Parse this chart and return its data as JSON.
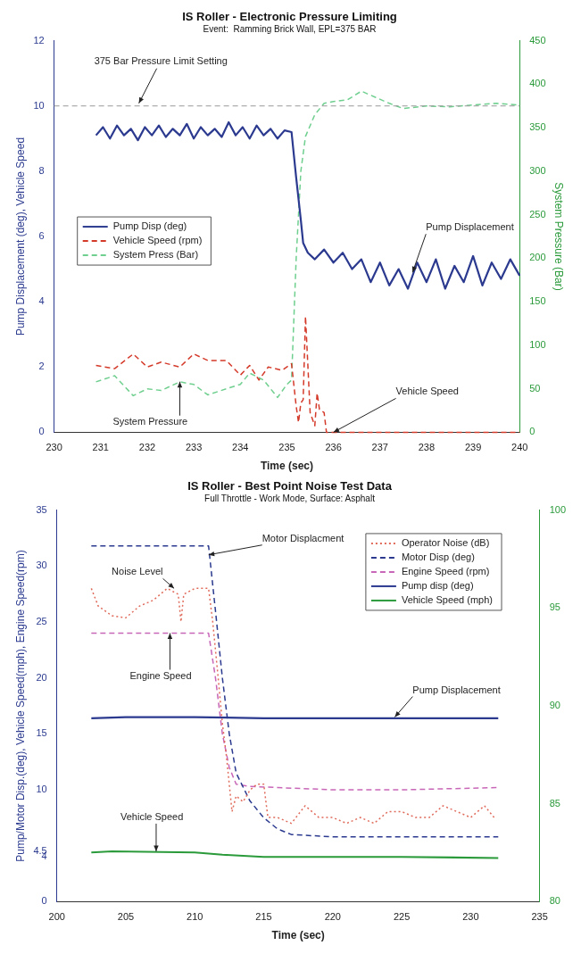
{
  "chart_data": [
    {
      "type": "line",
      "title": "IS Roller - Electronic Pressure Limiting",
      "subtitle": "Event:  Ramming Brick Wall, EPL=375 BAR",
      "xlabel": "Time (sec)",
      "ylabel": "Pump Displacement (deg), Vehicle Speed",
      "y2label": "System Pressure (Bar)",
      "xlim": [
        230,
        240
      ],
      "xticks": [
        230,
        231,
        232,
        233,
        234,
        235,
        236,
        237,
        238,
        239,
        240
      ],
      "ylim": [
        0,
        12
      ],
      "yticks": [
        0,
        2,
        4,
        6,
        8,
        10,
        12
      ],
      "y2lim": [
        0,
        450
      ],
      "y2ticks": [
        0,
        50,
        100,
        150,
        200,
        250,
        300,
        350,
        400,
        450
      ],
      "legend": "center left",
      "grid": false,
      "series": [
        {
          "name": "Pump Disp (deg)",
          "color": "#2b3a8f",
          "line_style": "solid",
          "x": [
            230.9,
            231.05,
            231.2,
            231.35,
            231.5,
            231.65,
            231.8,
            231.95,
            232.1,
            232.25,
            232.4,
            232.55,
            232.7,
            232.85,
            233.0,
            233.15,
            233.3,
            233.45,
            233.6,
            233.75,
            233.9,
            234.05,
            234.2,
            234.35,
            234.5,
            234.65,
            234.8,
            234.95,
            235.1,
            235.2,
            235.3,
            235.35,
            235.45,
            235.6,
            235.8,
            236.0,
            236.2,
            236.4,
            236.6,
            236.8,
            237.0,
            237.2,
            237.4,
            237.6,
            237.8,
            238.0,
            238.2,
            238.4,
            238.6,
            238.8,
            239.0,
            239.2,
            239.4,
            239.6,
            239.8,
            240.0
          ],
          "values": [
            9.1,
            9.35,
            9.0,
            9.4,
            9.1,
            9.3,
            8.95,
            9.35,
            9.1,
            9.4,
            9.05,
            9.3,
            9.1,
            9.45,
            9.0,
            9.35,
            9.1,
            9.3,
            9.05,
            9.5,
            9.1,
            9.35,
            9.0,
            9.4,
            9.1,
            9.3,
            9.0,
            9.25,
            9.2,
            7.8,
            6.5,
            5.8,
            5.5,
            5.3,
            5.6,
            5.2,
            5.5,
            5.0,
            5.3,
            4.6,
            5.2,
            4.5,
            5.0,
            4.4,
            5.2,
            4.6,
            5.3,
            4.4,
            5.1,
            4.6,
            5.4,
            4.5,
            5.2,
            4.7,
            5.3,
            4.8
          ]
        },
        {
          "name": "Vehicle Speed (rpm)",
          "color": "#d43a2a",
          "line_style": "dashed",
          "x": [
            230.9,
            231.3,
            231.7,
            232.0,
            232.3,
            232.7,
            233.0,
            233.3,
            233.7,
            234.0,
            234.2,
            234.4,
            234.6,
            234.9,
            235.1,
            235.2,
            235.25,
            235.3,
            235.35,
            235.4,
            235.5,
            235.6,
            235.65,
            235.7,
            235.8,
            235.85,
            240.0
          ],
          "values": [
            2.05,
            1.95,
            2.4,
            2.0,
            2.15,
            2.0,
            2.4,
            2.2,
            2.2,
            1.75,
            2.05,
            1.6,
            2.0,
            1.9,
            2.1,
            0.8,
            0.3,
            0.9,
            1.0,
            3.55,
            0.6,
            0.2,
            1.2,
            0.7,
            0.6,
            0,
            0
          ]
        },
        {
          "name": "System Press (Bar)",
          "color": "#6fcf8f",
          "line_style": "dashed",
          "axis": "y2",
          "x": [
            230.9,
            231.3,
            231.7,
            232.0,
            232.3,
            232.7,
            233.0,
            233.3,
            233.7,
            234.0,
            234.2,
            234.5,
            234.8,
            235.0,
            235.1,
            235.2,
            235.3,
            235.4,
            235.6,
            235.8,
            236.0,
            236.3,
            236.6,
            236.9,
            237.2,
            237.5,
            238.0,
            238.5,
            239.0,
            239.5,
            240.0
          ],
          "values": [
            58,
            65,
            42,
            50,
            48,
            58,
            55,
            43,
            50,
            55,
            68,
            60,
            40,
            55,
            60,
            200,
            300,
            340,
            365,
            378,
            380,
            382,
            392,
            385,
            378,
            372,
            375,
            374,
            376,
            378,
            376
          ]
        }
      ],
      "ref_lines": [
        {
          "axis": "y2",
          "value": 375,
          "label": "375 Bar Pressure Limit Setting",
          "color": "#999999",
          "line_style": "dashed"
        }
      ],
      "annotations": [
        {
          "text": "Pump Displacement",
          "x": 237.7,
          "y": 4.9
        },
        {
          "text": "System Pressure",
          "x": 232.7,
          "y": 1.55
        },
        {
          "text": "Vehicle Speed",
          "x": 236.0,
          "y": 0
        }
      ]
    },
    {
      "type": "line",
      "title": "IS Roller - Best Point Noise Test Data",
      "subtitle": "Full Throttle - Work Mode, Surface: Asphalt",
      "xlabel": "Time (sec)",
      "ylabel": "Pump/Motor Disp.(deg), Vehicle Speed(mph), Engine Speed(rpm)",
      "xlim": [
        200,
        235
      ],
      "xticks": [
        200,
        205,
        210,
        215,
        220,
        225,
        230,
        235
      ],
      "ylim": [
        0,
        35
      ],
      "yticks": [
        0,
        4,
        4.5,
        10,
        15,
        20,
        25,
        30,
        35
      ],
      "y2lim": [
        80,
        100
      ],
      "y2ticks": [
        80,
        85,
        90,
        95,
        100
      ],
      "legend": "top right",
      "grid": false,
      "series": [
        {
          "name": "Operator Noise (dB)",
          "color": "#e06a5a",
          "line_style": "dotted",
          "axis": "y2",
          "x": [
            202.5,
            203,
            204,
            205,
            206,
            207,
            208,
            208.8,
            209,
            209.2,
            210,
            211,
            211.3,
            211.7,
            212,
            212.3,
            212.7,
            213,
            213.5,
            214,
            214.5,
            215,
            215.3,
            216,
            217,
            218,
            219,
            220,
            221,
            222,
            223,
            224,
            225,
            226,
            227,
            228,
            229,
            230,
            231,
            231.7
          ],
          "values": [
            96.0,
            95.1,
            94.6,
            94.5,
            95.1,
            95.4,
            96.0,
            95.7,
            94.3,
            95.7,
            96.0,
            96.0,
            94.3,
            91.4,
            89.1,
            87.4,
            84.6,
            85.4,
            85.1,
            85.7,
            86.0,
            86.0,
            84.3,
            84.3,
            84.0,
            84.9,
            84.3,
            84.3,
            84.0,
            84.3,
            84.0,
            84.6,
            84.6,
            84.3,
            84.3,
            84.9,
            84.6,
            84.3,
            84.9,
            84.3
          ]
        },
        {
          "name": "Motor Disp (deg)",
          "color": "#2b3a8f",
          "line_style": "dashed",
          "x": [
            202.5,
            205,
            208,
            211,
            211.5,
            212,
            212.5,
            213,
            214,
            215,
            216,
            217,
            220,
            225,
            232
          ],
          "values": [
            31.8,
            31.8,
            31.8,
            31.8,
            26,
            20,
            15,
            11.5,
            9,
            7.5,
            6.5,
            6.0,
            5.8,
            5.8,
            5.8
          ]
        },
        {
          "name": "Engine Speed (rpm)",
          "color": "#c867b8",
          "line_style": "dashed",
          "x": [
            202.5,
            205,
            208,
            211,
            211.5,
            212,
            212.5,
            213,
            214,
            216,
            220,
            225,
            232
          ],
          "values": [
            24,
            24,
            24,
            24,
            20,
            15,
            12,
            10.5,
            10.3,
            10.2,
            10,
            10,
            10.2
          ]
        },
        {
          "name": "Pump disp (deg)",
          "color": "#2b3a8f",
          "line_style": "solid",
          "x": [
            202.5,
            205,
            210,
            215,
            220,
            225,
            232
          ],
          "values": [
            16.4,
            16.5,
            16.5,
            16.4,
            16.4,
            16.4,
            16.4
          ]
        },
        {
          "name": "Vehicle Speed (mph)",
          "color": "#2a9a3a",
          "line_style": "solid",
          "x": [
            202.5,
            204,
            210,
            212,
            215,
            220,
            225,
            232
          ],
          "values": [
            4.4,
            4.5,
            4.4,
            4.2,
            4.0,
            4.0,
            4.0,
            3.9
          ]
        }
      ],
      "annotations": [
        {
          "text": "Motor Displacment",
          "x": 211,
          "y": 31
        },
        {
          "text": "Noise Level",
          "x": 208.5,
          "y": 28
        },
        {
          "text": "Engine Speed",
          "x": 208.2,
          "y": 24
        },
        {
          "text": "Pump Displacement",
          "x": 224.5,
          "y": 16.5
        },
        {
          "text": "Vehicle Speed",
          "x": 207.2,
          "y": 4.5
        }
      ]
    }
  ]
}
